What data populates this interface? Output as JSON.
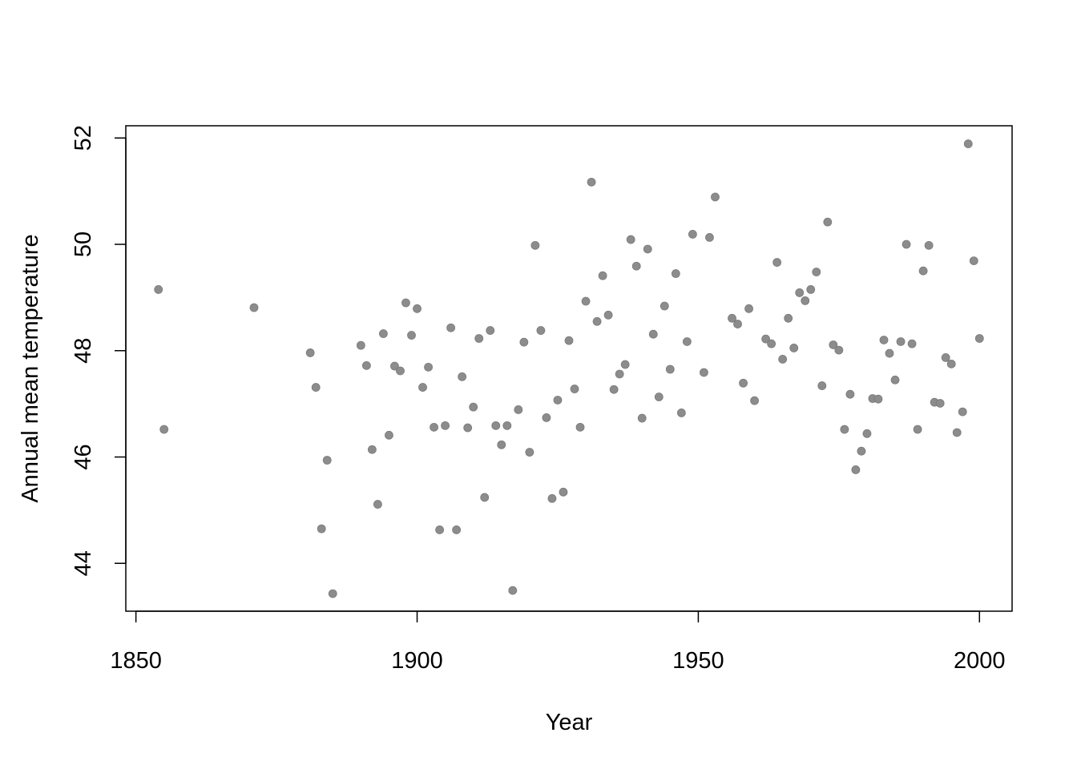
{
  "chart_data": {
    "type": "scatter",
    "title": "",
    "xlabel": "Year",
    "ylabel": "Annual mean temperature",
    "xlim": [
      1848.2,
      2005.8
    ],
    "ylim": [
      43.1,
      52.23
    ],
    "xticks": [
      1850,
      1900,
      1950,
      2000
    ],
    "yticks": [
      44,
      46,
      48,
      50,
      52
    ],
    "grid": false,
    "legend": "none",
    "point_color": "#8c8c8c",
    "points": [
      [
        1854,
        49.15
      ],
      [
        1855,
        46.52
      ],
      [
        1871,
        48.81
      ],
      [
        1881,
        47.96
      ],
      [
        1882,
        47.31
      ],
      [
        1883,
        44.65
      ],
      [
        1884,
        45.94
      ],
      [
        1885,
        43.43
      ],
      [
        1890,
        48.1
      ],
      [
        1891,
        47.72
      ],
      [
        1892,
        46.14
      ],
      [
        1893,
        45.11
      ],
      [
        1894,
        48.32
      ],
      [
        1895,
        46.41
      ],
      [
        1896,
        47.71
      ],
      [
        1897,
        47.62
      ],
      [
        1898,
        48.9
      ],
      [
        1899,
        48.29
      ],
      [
        1900,
        48.79
      ],
      [
        1901,
        47.31
      ],
      [
        1902,
        47.69
      ],
      [
        1903,
        46.56
      ],
      [
        1904,
        44.63
      ],
      [
        1905,
        46.59
      ],
      [
        1906,
        48.43
      ],
      [
        1907,
        44.63
      ],
      [
        1908,
        47.51
      ],
      [
        1909,
        46.55
      ],
      [
        1910,
        46.94
      ],
      [
        1911,
        48.23
      ],
      [
        1912,
        45.24
      ],
      [
        1913,
        48.38
      ],
      [
        1914,
        46.59
      ],
      [
        1915,
        46.23
      ],
      [
        1916,
        46.59
      ],
      [
        1917,
        43.49
      ],
      [
        1918,
        46.89
      ],
      [
        1919,
        48.16
      ],
      [
        1920,
        46.09
      ],
      [
        1921,
        49.98
      ],
      [
        1922,
        48.38
      ],
      [
        1923,
        46.74
      ],
      [
        1924,
        45.22
      ],
      [
        1925,
        47.07
      ],
      [
        1926,
        45.34
      ],
      [
        1927,
        48.19
      ],
      [
        1928,
        47.28
      ],
      [
        1929,
        46.56
      ],
      [
        1930,
        48.93
      ],
      [
        1931,
        51.17
      ],
      [
        1932,
        48.55
      ],
      [
        1933,
        49.41
      ],
      [
        1934,
        48.67
      ],
      [
        1935,
        47.27
      ],
      [
        1936,
        47.56
      ],
      [
        1937,
        47.74
      ],
      [
        1938,
        50.09
      ],
      [
        1939,
        49.59
      ],
      [
        1940,
        46.73
      ],
      [
        1941,
        49.91
      ],
      [
        1942,
        48.31
      ],
      [
        1943,
        47.13
      ],
      [
        1944,
        48.84
      ],
      [
        1945,
        47.65
      ],
      [
        1946,
        49.45
      ],
      [
        1947,
        46.83
      ],
      [
        1948,
        48.17
      ],
      [
        1949,
        50.19
      ],
      [
        1951,
        47.59
      ],
      [
        1952,
        50.13
      ],
      [
        1953,
        50.89
      ],
      [
        1956,
        48.61
      ],
      [
        1957,
        48.5
      ],
      [
        1958,
        47.39
      ],
      [
        1959,
        48.79
      ],
      [
        1960,
        47.06
      ],
      [
        1962,
        48.22
      ],
      [
        1963,
        48.13
      ],
      [
        1964,
        49.66
      ],
      [
        1965,
        47.84
      ],
      [
        1966,
        48.61
      ],
      [
        1967,
        48.05
      ],
      [
        1968,
        49.09
      ],
      [
        1969,
        48.94
      ],
      [
        1970,
        49.15
      ],
      [
        1971,
        49.48
      ],
      [
        1972,
        47.34
      ],
      [
        1973,
        50.42
      ],
      [
        1974,
        48.11
      ],
      [
        1975,
        48.01
      ],
      [
        1976,
        46.52
      ],
      [
        1977,
        47.18
      ],
      [
        1978,
        45.76
      ],
      [
        1979,
        46.11
      ],
      [
        1980,
        46.44
      ],
      [
        1981,
        47.1
      ],
      [
        1982,
        47.09
      ],
      [
        1983,
        48.2
      ],
      [
        1984,
        47.95
      ],
      [
        1985,
        47.45
      ],
      [
        1986,
        48.17
      ],
      [
        1987,
        50.0
      ],
      [
        1988,
        48.13
      ],
      [
        1989,
        46.52
      ],
      [
        1990,
        49.5
      ],
      [
        1991,
        49.98
      ],
      [
        1992,
        47.03
      ],
      [
        1993,
        47.01
      ],
      [
        1994,
        47.87
      ],
      [
        1995,
        47.75
      ],
      [
        1996,
        46.46
      ],
      [
        1997,
        46.85
      ],
      [
        1998,
        51.89
      ],
      [
        1999,
        49.69
      ],
      [
        2000,
        48.23
      ]
    ]
  }
}
